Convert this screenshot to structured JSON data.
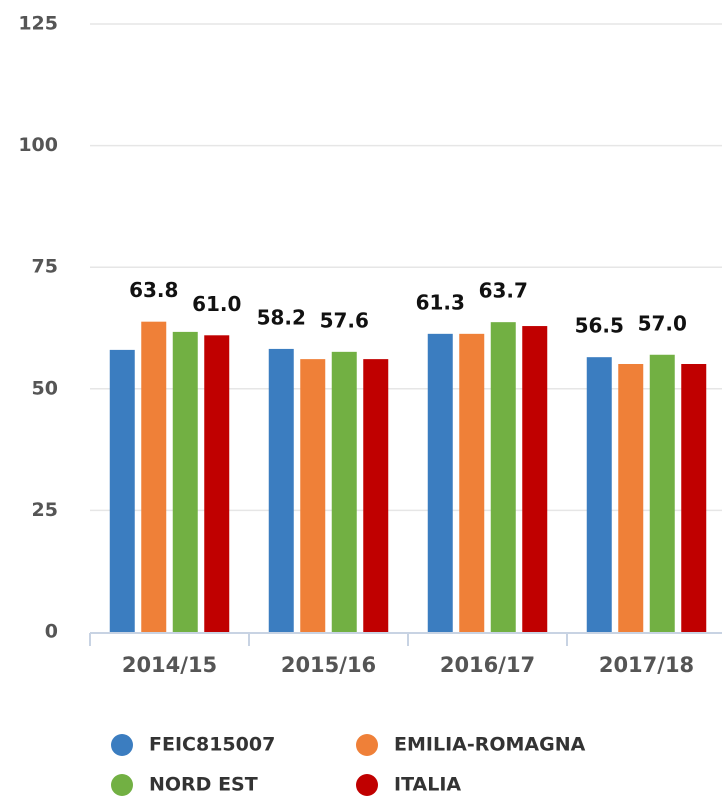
{
  "chart_data": {
    "type": "bar",
    "categories": [
      "2014/15",
      "2015/16",
      "2016/17",
      "2017/18"
    ],
    "series": [
      {
        "name": "FEIC815007",
        "color": "#3b7dc0",
        "values": [
          58.0,
          58.2,
          61.3,
          56.5
        ],
        "value_labels": [
          null,
          "58.2",
          "61.3",
          "56.5"
        ]
      },
      {
        "name": "EMILIA-ROMAGNA",
        "color": "#ef8038",
        "values": [
          63.8,
          56.1,
          61.3,
          55.1
        ],
        "value_labels": [
          "63.8",
          null,
          null,
          null
        ]
      },
      {
        "name": "NORD EST",
        "color": "#72b043",
        "values": [
          61.7,
          57.6,
          63.7,
          57.0
        ],
        "value_labels": [
          null,
          "57.6",
          "63.7",
          "57.0"
        ]
      },
      {
        "name": "ITALIA",
        "color": "#c00000",
        "values": [
          61.0,
          56.1,
          62.9,
          55.1
        ],
        "value_labels": [
          "61.0",
          null,
          null,
          null
        ]
      }
    ],
    "ylim": [
      0,
      125
    ],
    "yticks": [
      0,
      25,
      50,
      75,
      100,
      125
    ],
    "grid": true,
    "legend": "bottom"
  }
}
